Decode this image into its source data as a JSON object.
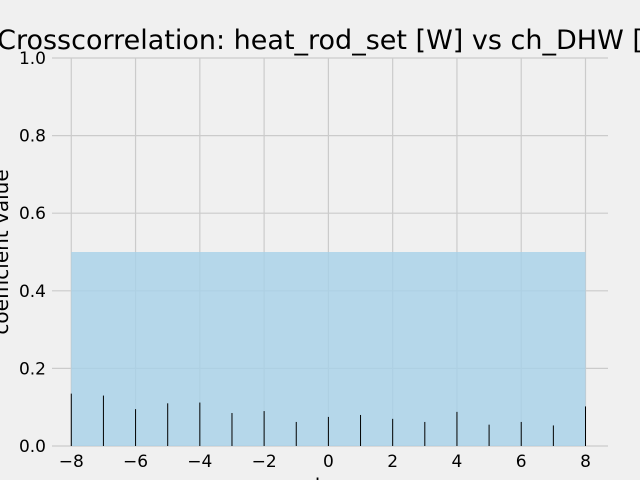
{
  "chart_data": {
    "type": "bar",
    "title": "Crosscorrelation: heat_rod_set [W] vs ch_DHW [",
    "xlabel": "lag",
    "ylabel": "coefficient value",
    "xlim": [
      -8.6,
      8.7
    ],
    "ylim": [
      0,
      1.0
    ],
    "xticks": [
      -8,
      -6,
      -4,
      -2,
      0,
      2,
      4,
      6,
      8
    ],
    "xtick_labels": [
      "−8",
      "−6",
      "−4",
      "−2",
      "0",
      "2",
      "4",
      "6",
      "8"
    ],
    "yticks": [
      0.0,
      0.2,
      0.4,
      0.6,
      0.8,
      1.0
    ],
    "ytick_labels": [
      "0.0",
      "0.2",
      "0.4",
      "0.6",
      "0.8",
      "1.0"
    ],
    "grid": true,
    "confidence_band": {
      "x_range": [
        -8,
        8
      ],
      "lower": 0.0,
      "upper": 0.5,
      "color": "#a6d1e8"
    },
    "x": [
      -8,
      -7,
      -6,
      -5,
      -4,
      -3,
      -2,
      -1,
      0,
      1,
      2,
      3,
      4,
      5,
      6,
      7,
      8
    ],
    "values": [
      0.135,
      0.13,
      0.095,
      0.11,
      0.112,
      0.085,
      0.09,
      0.062,
      0.075,
      0.08,
      0.07,
      0.062,
      0.088,
      0.055,
      0.062,
      0.053,
      0.102
    ],
    "bar_color": "#000000",
    "background": "#f0f0f0",
    "grid_color": "#cbcbcb"
  }
}
